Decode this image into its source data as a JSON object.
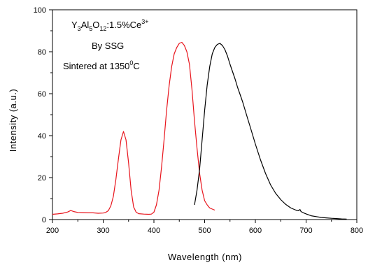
{
  "chart_data": {
    "type": "line",
    "title": "",
    "xlabel": "Wavelength (nm)",
    "ylabel": "Intensity (a.u.)",
    "xlim": [
      200,
      800
    ],
    "ylim": [
      0,
      100
    ],
    "x_ticks": [
      200,
      300,
      400,
      500,
      600,
      700,
      800
    ],
    "y_ticks": [
      0,
      20,
      40,
      60,
      80,
      100
    ],
    "grid": false,
    "legend": "none",
    "annotations": {
      "compound": {
        "prefix": "Y",
        "sub1": "3",
        "el2": "Al",
        "sub2": "5",
        "el3": "O",
        "sub3": "12",
        "dopant": ":1.5%Ce",
        "sup": "3+"
      },
      "method": "By SSG",
      "sinter_text": "Sintered at 1350",
      "sinter_sup": "0",
      "sinter_unit": "C"
    },
    "series": [
      {
        "color": "#e8141c",
        "x": [
          200,
          210,
          220,
          230,
          236,
          242,
          250,
          260,
          270,
          280,
          290,
          300,
          305,
          310,
          315,
          320,
          325,
          330,
          335,
          340,
          345,
          350,
          355,
          360,
          365,
          370,
          380,
          390,
          395,
          400,
          405,
          410,
          415,
          420,
          425,
          430,
          435,
          440,
          445,
          450,
          455,
          460,
          465,
          470,
          475,
          480,
          485,
          490,
          495,
          500,
          505,
          510,
          515,
          520
        ],
        "y": [
          2.5,
          2.7,
          3.0,
          3.6,
          4.3,
          3.8,
          3.4,
          3.3,
          3.2,
          3.2,
          3.0,
          3.1,
          3.4,
          4.2,
          6.5,
          11,
          19,
          29,
          38,
          42,
          38,
          27,
          14,
          6,
          3.5,
          2.8,
          2.6,
          2.5,
          2.6,
          3.5,
          7,
          14,
          25,
          38,
          52,
          64,
          73,
          79,
          82,
          84,
          84.5,
          83,
          80,
          74,
          62,
          47,
          34,
          22,
          14,
          9,
          7,
          5.5,
          5,
          4.5
        ]
      },
      {
        "color": "#000000",
        "x": [
          480,
          485,
          490,
          495,
          500,
          505,
          510,
          515,
          520,
          525,
          530,
          535,
          540,
          545,
          550,
          555,
          560,
          565,
          570,
          575,
          580,
          585,
          590,
          595,
          600,
          610,
          620,
          630,
          640,
          650,
          660,
          670,
          680,
          685,
          688,
          690,
          695,
          700,
          710,
          720,
          730,
          740,
          750,
          760,
          770,
          780
        ],
        "y": [
          7,
          14,
          24,
          38,
          52,
          64,
          73,
          79,
          82,
          83.5,
          84,
          83,
          81,
          78,
          74,
          70.5,
          67,
          63,
          59.5,
          56,
          52,
          48,
          44,
          40,
          36,
          28.5,
          22,
          16.5,
          12.5,
          9.5,
          7.2,
          5.5,
          4.5,
          4.2,
          4.8,
          3.8,
          3.2,
          2.7,
          1.8,
          1.4,
          1.0,
          0.8,
          0.6,
          0.45,
          0.3,
          0.2
        ]
      }
    ]
  }
}
